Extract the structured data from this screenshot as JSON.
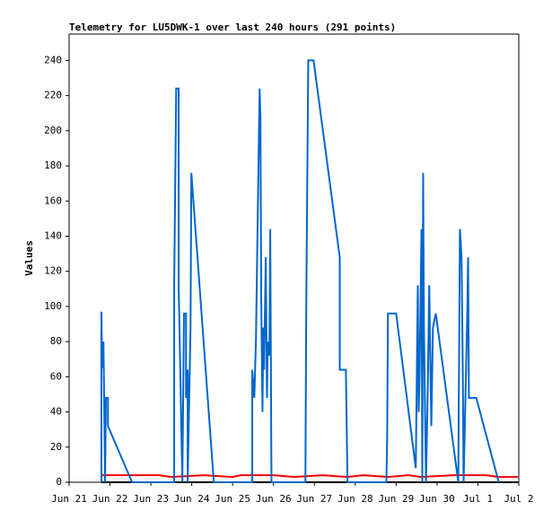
{
  "chart_data": {
    "type": "line",
    "title": "Telemetry for LU5DWK-1 over last 240 hours (291 points)",
    "y_label": "Values",
    "xlim": [
      0,
      11
    ],
    "xticks": [
      {
        "value": 0,
        "label": "Jun 21"
      },
      {
        "value": 1,
        "label": "Jun 22"
      },
      {
        "value": 2,
        "label": "Jun 23"
      },
      {
        "value": 3,
        "label": "Jun 24"
      },
      {
        "value": 4,
        "label": "Jun 25"
      },
      {
        "value": 5,
        "label": "Jun 26"
      },
      {
        "value": 6,
        "label": "Jun 27"
      },
      {
        "value": 7,
        "label": "Jun 28"
      },
      {
        "value": 8,
        "label": "Jun 29"
      },
      {
        "value": 9,
        "label": "Jun 30"
      },
      {
        "value": 10,
        "label": "Jul 1"
      },
      {
        "value": 11,
        "label": "Jul 2"
      }
    ],
    "ylim": [
      0,
      255
    ],
    "yticks": [
      0,
      20,
      40,
      60,
      80,
      100,
      120,
      140,
      160,
      180,
      200,
      220,
      240
    ],
    "series": [
      {
        "color": "#0066cc",
        "x": [
          0.79,
          0.79,
          0.81,
          0.84,
          0.86,
          0.88,
          0.9,
          0.95,
          0.95,
          1.54,
          2.57,
          2.57,
          2.62,
          2.68,
          2.68,
          2.77,
          2.81,
          2.86,
          2.86,
          2.9,
          2.9,
          2.97,
          2.99,
          3.54,
          4.48,
          4.48,
          4.53,
          4.57,
          4.62,
          4.66,
          4.68,
          4.7,
          4.73,
          4.75,
          4.77,
          4.81,
          4.84,
          4.86,
          4.9,
          4.92,
          4.95,
          5.78,
          5.8,
          5.85,
          5.98,
          6.62,
          6.62,
          6.77,
          6.79,
          6.81,
          7.76,
          7.78,
          7.8,
          8.0,
          8.48,
          8.53,
          8.55,
          8.57,
          8.62,
          8.64,
          8.66,
          8.68,
          8.73,
          8.77,
          8.81,
          8.86,
          8.9,
          8.97,
          9.52,
          9.56,
          9.6,
          9.63,
          9.65,
          9.74,
          9.76,
          9.78,
          9.96,
          10.51
        ],
        "values": [
          0,
          97,
          65,
          80,
          40,
          0,
          48,
          48,
          32,
          0,
          0,
          112,
          224,
          224,
          112,
          0,
          96,
          96,
          48,
          64,
          0,
          88,
          176,
          0,
          0,
          64,
          48,
          80,
          160,
          224,
          208,
          104,
          40,
          88,
          64,
          128,
          48,
          80,
          72,
          144,
          0,
          0,
          96,
          240,
          240,
          128,
          64,
          64,
          32,
          0,
          0,
          24,
          96,
          96,
          8,
          112,
          40,
          56,
          144,
          0,
          176,
          88,
          0,
          48,
          112,
          32,
          88,
          96,
          0,
          144,
          128,
          64,
          0,
          96,
          128,
          48,
          48,
          0
        ]
      },
      {
        "color": "#ff0000",
        "x": [
          0.79,
          2.2,
          2.5,
          3.3,
          4.0,
          4.2,
          5.0,
          5.5,
          6.2,
          6.8,
          7.2,
          7.8,
          8.3,
          8.6,
          9.4,
          10.2,
          10.5,
          10.98
        ],
        "values": [
          4,
          4,
          3,
          4,
          3,
          4,
          4,
          3,
          4,
          3,
          4,
          3,
          4,
          3,
          4,
          4,
          3,
          3
        ]
      },
      {
        "color": "#000000",
        "x": [
          0.79,
          10.98
        ],
        "values": [
          0,
          0
        ]
      }
    ]
  }
}
